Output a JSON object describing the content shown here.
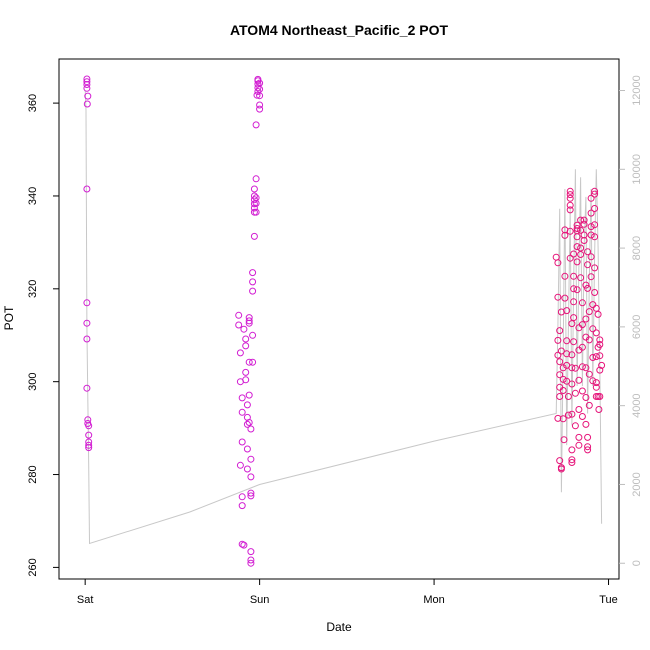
{
  "chart_data": {
    "type": "scatter",
    "title": "ATOM4 Northeast_Pacific_2 POT",
    "xlabel": "Date",
    "ylabel": "POT",
    "y2label": "",
    "x_ticks": [
      {
        "label": "Sat",
        "value": 0
      },
      {
        "label": "Sun",
        "value": 1
      },
      {
        "label": "Mon",
        "value": 2
      },
      {
        "label": "Tue",
        "value": 3
      }
    ],
    "x_range": [
      -0.15,
      3.06
    ],
    "ylim": [
      257.5,
      369.5
    ],
    "y_ticks": [
      260,
      280,
      300,
      320,
      340,
      360
    ],
    "y2lim": [
      -400,
      12800
    ],
    "y2_ticks": [
      0,
      2000,
      4000,
      6000,
      8000,
      10000,
      12000
    ],
    "grid": false,
    "colors": {
      "points_early": "#d21ed2",
      "points_late": "#e6147a",
      "line": "#c8c8c8",
      "secondary_axis": "#bdbdbd"
    },
    "series": [
      {
        "axis": "left",
        "role": "points-day1",
        "points": [
          [
            0.01,
            365.2
          ],
          [
            0.01,
            364.6
          ],
          [
            0.01,
            364.0
          ],
          [
            0.01,
            363.2
          ],
          [
            0.015,
            361.5
          ],
          [
            0.012,
            359.8
          ],
          [
            0.01,
            341.5
          ],
          [
            0.01,
            317.0
          ],
          [
            0.01,
            312.6
          ],
          [
            0.01,
            309.2
          ],
          [
            0.01,
            298.6
          ],
          [
            0.015,
            291.8
          ],
          [
            0.015,
            291.0
          ],
          [
            0.02,
            290.5
          ],
          [
            0.02,
            288.5
          ],
          [
            0.02,
            287.0
          ],
          [
            0.02,
            286.3
          ],
          [
            0.02,
            285.8
          ]
        ]
      },
      {
        "axis": "left",
        "role": "points-day2",
        "points": [
          [
            0.88,
            314.3
          ],
          [
            0.88,
            312.2
          ],
          [
            0.89,
            306.2
          ],
          [
            0.89,
            300.0
          ],
          [
            0.9,
            296.5
          ],
          [
            0.9,
            293.4
          ],
          [
            0.9,
            287.0
          ],
          [
            0.89,
            282.0
          ],
          [
            0.9,
            275.2
          ],
          [
            0.9,
            273.3
          ],
          [
            0.9,
            265.0
          ],
          [
            0.91,
            264.8
          ],
          [
            0.91,
            311.3
          ],
          [
            0.92,
            309.2
          ],
          [
            0.92,
            307.7
          ],
          [
            0.92,
            302.0
          ],
          [
            0.92,
            300.4
          ],
          [
            0.93,
            295.0
          ],
          [
            0.93,
            292.3
          ],
          [
            0.93,
            290.8
          ],
          [
            0.93,
            285.5
          ],
          [
            0.93,
            281.2
          ],
          [
            0.94,
            313.8
          ],
          [
            0.94,
            313.1
          ],
          [
            0.94,
            312.6
          ],
          [
            0.94,
            304.2
          ],
          [
            0.94,
            297.1
          ],
          [
            0.94,
            291.2
          ],
          [
            0.95,
            289.8
          ],
          [
            0.95,
            283.3
          ],
          [
            0.95,
            279.5
          ],
          [
            0.95,
            276.0
          ],
          [
            0.95,
            275.4
          ],
          [
            0.95,
            263.4
          ],
          [
            0.95,
            261.6
          ],
          [
            0.95,
            260.9
          ],
          [
            0.96,
            310.0
          ],
          [
            0.96,
            304.2
          ],
          [
            0.96,
            319.5
          ],
          [
            0.96,
            321.5
          ],
          [
            0.96,
            323.5
          ],
          [
            0.97,
            331.3
          ],
          [
            0.97,
            336.5
          ],
          [
            0.97,
            337.4
          ],
          [
            0.97,
            338.3
          ],
          [
            0.97,
            339.2
          ],
          [
            0.97,
            340.0
          ],
          [
            0.97,
            341.5
          ],
          [
            0.98,
            336.5
          ],
          [
            0.98,
            338.4
          ],
          [
            0.98,
            339.6
          ],
          [
            0.98,
            343.7
          ],
          [
            0.98,
            355.3
          ],
          [
            0.985,
            361.7
          ],
          [
            0.99,
            362.5
          ],
          [
            0.99,
            363.3
          ],
          [
            0.99,
            364.1
          ],
          [
            0.99,
            364.8
          ],
          [
            0.99,
            365.1
          ],
          [
            1.0,
            361.6
          ],
          [
            1.0,
            359.6
          ],
          [
            1.0,
            358.7
          ],
          [
            1.0,
            364.3
          ],
          [
            1.0,
            363.0
          ]
        ]
      },
      {
        "axis": "left",
        "role": "points-day4",
        "points": [
          [
            2.7,
            326.8
          ],
          [
            2.71,
            325.6
          ],
          [
            2.71,
            318.2
          ],
          [
            2.72,
            311.0
          ],
          [
            2.71,
            308.9
          ],
          [
            2.71,
            305.7
          ],
          [
            2.72,
            304.3
          ],
          [
            2.72,
            301.5
          ],
          [
            2.72,
            298.8
          ],
          [
            2.72,
            296.8
          ],
          [
            2.71,
            292.1
          ],
          [
            2.72,
            283.0
          ],
          [
            2.73,
            281.5
          ],
          [
            2.73,
            281.2
          ],
          [
            2.73,
            315.0
          ],
          [
            2.73,
            306.6
          ],
          [
            2.74,
            303.0
          ],
          [
            2.74,
            300.5
          ],
          [
            2.74,
            298.1
          ],
          [
            2.74,
            292.0
          ],
          [
            2.745,
            287.5
          ],
          [
            2.75,
            331.5
          ],
          [
            2.75,
            332.7
          ],
          [
            2.75,
            322.7
          ],
          [
            2.75,
            318.0
          ],
          [
            2.76,
            315.3
          ],
          [
            2.76,
            308.8
          ],
          [
            2.76,
            306.0
          ],
          [
            2.76,
            303.5
          ],
          [
            2.76,
            300.1
          ],
          [
            2.77,
            296.8
          ],
          [
            2.77,
            292.8
          ],
          [
            2.78,
            341.0
          ],
          [
            2.78,
            340.3
          ],
          [
            2.78,
            339.5
          ],
          [
            2.78,
            338.0
          ],
          [
            2.78,
            337.0
          ],
          [
            2.78,
            332.4
          ],
          [
            2.78,
            326.6
          ],
          [
            2.79,
            312.5
          ],
          [
            2.79,
            305.8
          ],
          [
            2.79,
            303.0
          ],
          [
            2.79,
            299.5
          ],
          [
            2.79,
            293.0
          ],
          [
            2.79,
            285.3
          ],
          [
            2.79,
            283.2
          ],
          [
            2.79,
            282.6
          ],
          [
            2.8,
            327.5
          ],
          [
            2.8,
            322.7
          ],
          [
            2.8,
            320.0
          ],
          [
            2.8,
            317.2
          ],
          [
            2.8,
            313.8
          ],
          [
            2.8,
            308.6
          ],
          [
            2.81,
            302.9
          ],
          [
            2.81,
            297.5
          ],
          [
            2.81,
            290.5
          ],
          [
            2.82,
            333.7
          ],
          [
            2.82,
            333.0
          ],
          [
            2.82,
            332.5
          ],
          [
            2.82,
            331.2
          ],
          [
            2.82,
            329.1
          ],
          [
            2.82,
            325.8
          ],
          [
            2.82,
            319.8
          ],
          [
            2.83,
            311.6
          ],
          [
            2.83,
            306.8
          ],
          [
            2.83,
            300.3
          ],
          [
            2.83,
            294.0
          ],
          [
            2.83,
            288.0
          ],
          [
            2.83,
            286.3
          ],
          [
            2.84,
            334.8
          ],
          [
            2.84,
            332.6
          ],
          [
            2.84,
            328.8
          ],
          [
            2.84,
            327.4
          ],
          [
            2.84,
            322.4
          ],
          [
            2.85,
            317.0
          ],
          [
            2.85,
            312.3
          ],
          [
            2.85,
            307.4
          ],
          [
            2.85,
            303.2
          ],
          [
            2.85,
            298.0
          ],
          [
            2.85,
            292.5
          ],
          [
            2.86,
            334.8
          ],
          [
            2.86,
            333.9
          ],
          [
            2.86,
            331.6
          ],
          [
            2.86,
            330.4
          ],
          [
            2.87,
            320.8
          ],
          [
            2.87,
            313.5
          ],
          [
            2.87,
            309.6
          ],
          [
            2.87,
            303.0
          ],
          [
            2.87,
            296.6
          ],
          [
            2.87,
            290.8
          ],
          [
            2.88,
            288.0
          ],
          [
            2.88,
            286.0
          ],
          [
            2.88,
            285.3
          ],
          [
            2.88,
            328.0
          ],
          [
            2.88,
            325.2
          ],
          [
            2.88,
            320.1
          ],
          [
            2.89,
            315.1
          ],
          [
            2.89,
            309.0
          ],
          [
            2.89,
            301.6
          ],
          [
            2.89,
            294.9
          ],
          [
            2.9,
            339.5
          ],
          [
            2.9,
            336.3
          ],
          [
            2.9,
            333.4
          ],
          [
            2.9,
            331.6
          ],
          [
            2.9,
            326.9
          ],
          [
            2.9,
            322.6
          ],
          [
            2.91,
            316.6
          ],
          [
            2.91,
            311.4
          ],
          [
            2.91,
            305.2
          ],
          [
            2.91,
            300.2
          ],
          [
            2.92,
            341.0
          ],
          [
            2.92,
            340.4
          ],
          [
            2.92,
            337.3
          ],
          [
            2.92,
            333.8
          ],
          [
            2.92,
            331.2
          ],
          [
            2.92,
            324.5
          ],
          [
            2.92,
            319.2
          ],
          [
            2.93,
            315.8
          ],
          [
            2.93,
            310.5
          ],
          [
            2.93,
            305.4
          ],
          [
            2.93,
            299.8
          ],
          [
            2.93,
            298.8
          ],
          [
            2.93,
            296.8
          ],
          [
            2.94,
            314.5
          ],
          [
            2.94,
            307.4
          ],
          [
            2.94,
            296.8
          ],
          [
            2.945,
            294.0
          ],
          [
            2.95,
            309.0
          ],
          [
            2.95,
            308.0
          ],
          [
            2.95,
            305.6
          ],
          [
            2.95,
            302.5
          ],
          [
            2.96,
            303.5
          ],
          [
            2.95,
            296.8
          ]
        ]
      },
      {
        "axis": "right",
        "role": "line",
        "points": [
          [
            0.0,
            12000
          ],
          [
            0.005,
            11500
          ],
          [
            0.01,
            6000
          ],
          [
            0.015,
            4200
          ],
          [
            0.02,
            2500
          ],
          [
            0.025,
            500
          ],
          [
            0.6,
            1300
          ],
          [
            1.0,
            2000
          ],
          [
            2.0,
            3100
          ],
          [
            2.7,
            3800
          ],
          [
            2.71,
            6000
          ],
          [
            2.72,
            9000
          ],
          [
            2.73,
            1800
          ],
          [
            2.74,
            5400
          ],
          [
            2.75,
            9500
          ],
          [
            2.76,
            3000
          ],
          [
            2.77,
            6000
          ],
          [
            2.78,
            9000
          ],
          [
            2.79,
            3500
          ],
          [
            2.8,
            7000
          ],
          [
            2.81,
            10000
          ],
          [
            2.82,
            4500
          ],
          [
            2.83,
            7500
          ],
          [
            2.84,
            9800
          ],
          [
            2.85,
            4500
          ],
          [
            2.86,
            8000
          ],
          [
            2.87,
            9300
          ],
          [
            2.88,
            3800
          ],
          [
            2.89,
            7200
          ],
          [
            2.9,
            9500
          ],
          [
            2.91,
            4500
          ],
          [
            2.92,
            7800
          ],
          [
            2.93,
            10000
          ],
          [
            2.94,
            8000
          ],
          [
            2.95,
            5000
          ],
          [
            2.96,
            1000
          ]
        ]
      }
    ]
  }
}
